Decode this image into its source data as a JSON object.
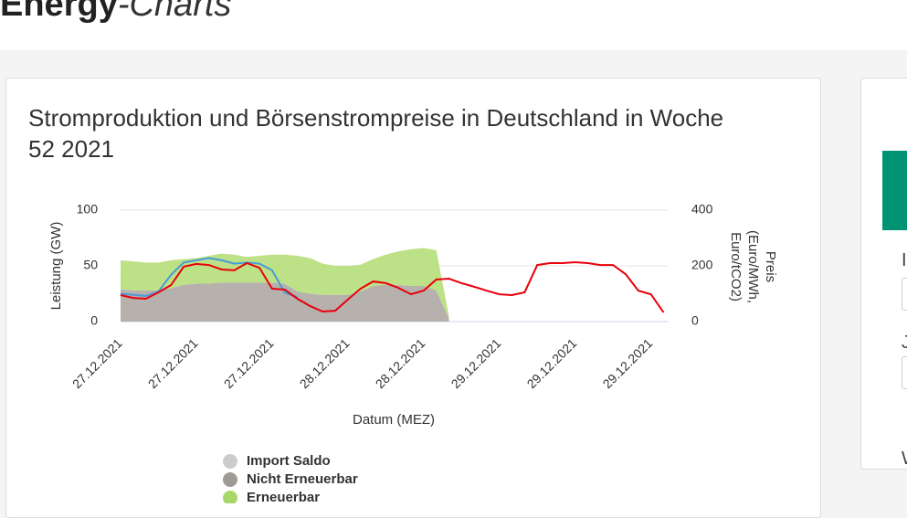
{
  "header": {
    "brand": "Energy",
    "brand_accent": "-Charts"
  },
  "side_panel": {
    "labels": [
      "I",
      "J",
      "W"
    ]
  },
  "chart_data": {
    "type": "line",
    "title": "Stromproduktion und Börsenstrompreise in Deutschland in Woche 52 2021",
    "x_label": "Datum (MEZ)",
    "y_label": "Leistung (GW)",
    "y2_label": [
      "Preis",
      "(Euro/MWh,",
      "Euro/tCO2)"
    ],
    "categories": [
      "27.12.2021",
      null,
      null,
      null,
      null,
      null,
      "27.12.2021",
      null,
      null,
      null,
      null,
      null,
      "27.12.2021",
      null,
      null,
      null,
      null,
      null,
      "28.12.2021",
      null,
      null,
      null,
      null,
      null,
      "28.12.2021",
      null,
      null,
      null,
      null,
      null,
      "29.12.2021",
      null,
      null,
      null,
      null,
      null,
      "29.12.2021",
      null,
      null,
      null,
      null,
      null,
      "29.12.2021",
      null
    ],
    "ylim": [
      0,
      100
    ],
    "yticks": [
      0,
      50,
      100
    ],
    "y2lim": [
      0,
      400
    ],
    "y2ticks": [
      0,
      200,
      400
    ],
    "grid": true,
    "series": [
      {
        "name": "Import Saldo",
        "color": "#cccccc",
        "kind": "area",
        "visible": false,
        "values": [
          null,
          null,
          null,
          null,
          null,
          null,
          null,
          null,
          null,
          null,
          null,
          null,
          null,
          null,
          null,
          null,
          null,
          null,
          null,
          null,
          null,
          null,
          null,
          null,
          null,
          null,
          null,
          null,
          null,
          null,
          null,
          null,
          null,
          null,
          null,
          null,
          null,
          null,
          null,
          null,
          null,
          null,
          null,
          null
        ]
      },
      {
        "name": "Nicht Erneuerbar",
        "color": "#b2ada8",
        "legend_color": "#a09a94",
        "kind": "area",
        "stack": true,
        "visible": true,
        "values": [
          29,
          28,
          28,
          28,
          30,
          33,
          34,
          34,
          35,
          35,
          35,
          35,
          35,
          34,
          27,
          25,
          24,
          24,
          24,
          27,
          32,
          33,
          33,
          32,
          32,
          28,
          3,
          null,
          null,
          null,
          null,
          null,
          null,
          null,
          null,
          null,
          null,
          null,
          null,
          null,
          null,
          null,
          null,
          null
        ]
      },
      {
        "name": "Erneuerbar",
        "color": "#b9df80",
        "legend_color": "#a9d86a",
        "kind": "area",
        "stack": true,
        "visible": true,
        "values": [
          26,
          26,
          25,
          25,
          25,
          23,
          23,
          25,
          26,
          25,
          23,
          24,
          25,
          26,
          32,
          32,
          28,
          26,
          26,
          24,
          24,
          27,
          30,
          33,
          34,
          36,
          2,
          null,
          null,
          null,
          null,
          null,
          null,
          null,
          null,
          null,
          null,
          null,
          null,
          null,
          null,
          null,
          null,
          null
        ]
      },
      {
        "color": "#4a9bd6",
        "kind": "line",
        "visible": true,
        "values": [
          25,
          24,
          23,
          27,
          42,
          53,
          55,
          57,
          55,
          52,
          53,
          52,
          46,
          26,
          22,
          null,
          null,
          null,
          null,
          null,
          null,
          null,
          null,
          null,
          null,
          null,
          null,
          null,
          null,
          null,
          null,
          null,
          null,
          null,
          null,
          null,
          null,
          null,
          null,
          null,
          null,
          null,
          null,
          null
        ]
      },
      {
        "color": "#e8000b",
        "kind": "line",
        "axis": "y2",
        "visible": true,
        "values": [
          95,
          85,
          82,
          105,
          131,
          197,
          207,
          203,
          187,
          184,
          210,
          193,
          118,
          115,
          82,
          56,
          36,
          39,
          79,
          118,
          144,
          138,
          121,
          98,
          111,
          151,
          154,
          138,
          125,
          111,
          98,
          95,
          105,
          203,
          210,
          210,
          213,
          210,
          203,
          203,
          170,
          111,
          98,
          33
        ]
      }
    ]
  }
}
